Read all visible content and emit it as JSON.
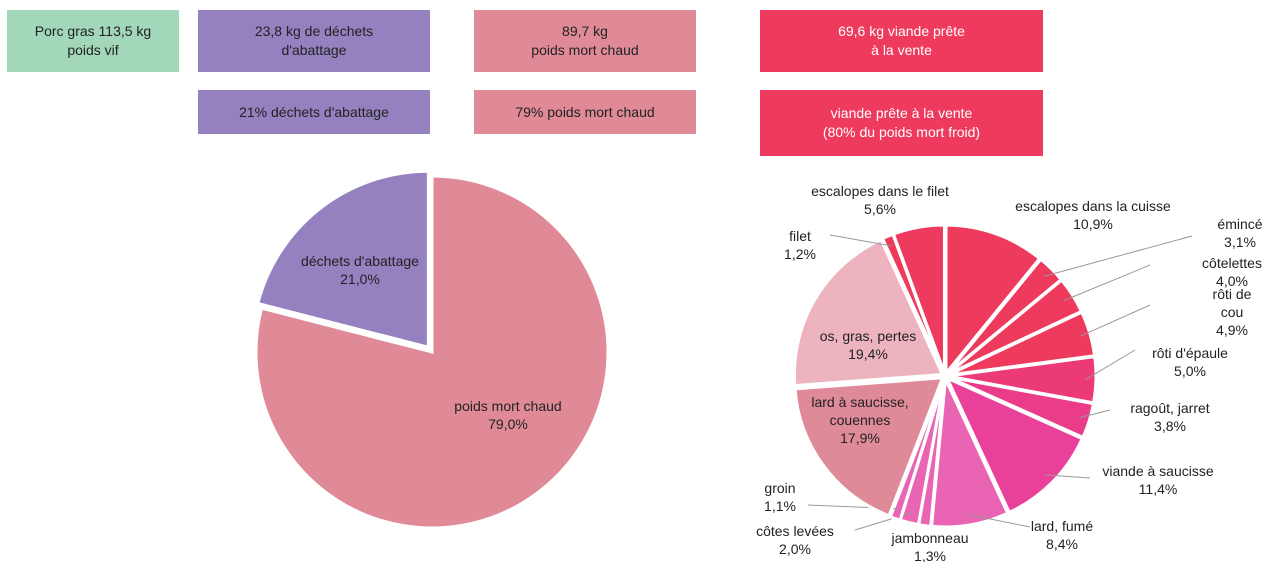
{
  "boxes": [
    {
      "lines": [
        "Porc gras 113,5 kg",
        "poids vif"
      ],
      "color": "#a2d8b9",
      "text_color": "#222222"
    },
    {
      "lines": [
        "23,8 kg de déchets",
        "d'abattage"
      ],
      "color": "#9581bf",
      "text_color": "#222222"
    },
    {
      "lines": [
        "89,7 kg",
        "poids mort chaud"
      ],
      "color": "#e08a98",
      "text_color": "#222222"
    },
    {
      "lines": [
        "69,6 kg viande prête",
        "à la vente"
      ],
      "color": "#ee3a5c",
      "text_color": "#ffffff"
    },
    {
      "lines": [
        "21% déchets d'abattage"
      ],
      "color": "#9581bf",
      "text_color": "#222222"
    },
    {
      "lines": [
        "79% poids mort chaud"
      ],
      "color": "#e08a98",
      "text_color": "#222222"
    },
    {
      "lines": [
        "viande prête à la vente",
        "(80% du poids mort froid)"
      ],
      "color": "#ee3a5c",
      "text_color": "#ffffff"
    }
  ],
  "chart_data": [
    {
      "type": "pie",
      "categories": [
        "déchets d'abattage",
        "poids mort chaud"
      ],
      "values": [
        21.0,
        79.0
      ],
      "value_labels": [
        "21,0%",
        "79,0%"
      ],
      "colors": [
        "#9581bf",
        "#e08a98"
      ]
    },
    {
      "type": "pie",
      "categories": [
        "escalopes dans la cuisse",
        "émincé",
        "côtelettes",
        "rôti de cou",
        "rôti d'épaule",
        "ragoût, jarret",
        "viande à saucisse",
        "lard, fumé",
        "jambonneau",
        "côtes levées",
        "groin",
        "lard à saucisse, couennes",
        "os, gras, pertes",
        "filet",
        "escalopes dans le filet"
      ],
      "values": [
        10.9,
        3.1,
        4.0,
        4.9,
        5.0,
        3.8,
        11.4,
        8.4,
        1.3,
        2.0,
        1.1,
        17.9,
        19.4,
        1.2,
        5.6
      ],
      "value_labels": [
        "10,9%",
        "3,1%",
        "4,0%",
        "4,9%",
        "5,0%",
        "3,8%",
        "11,4%",
        "8,4%",
        "1,3%",
        "2,0%",
        "1,1%",
        "17,9%",
        "19,4%",
        "1,2%",
        "5,6%"
      ],
      "colors": [
        "#ee3a5c",
        "#ee3a5c",
        "#ee3a5c",
        "#ee3a5c",
        "#ec3a78",
        "#ea3c88",
        "#e9409a",
        "#ea64b4",
        "#ea64b4",
        "#ea64b4",
        "#ea64b4",
        "#df8a98",
        "#edb4bf",
        "#ee3a5c",
        "#ee3a5c"
      ]
    }
  ]
}
